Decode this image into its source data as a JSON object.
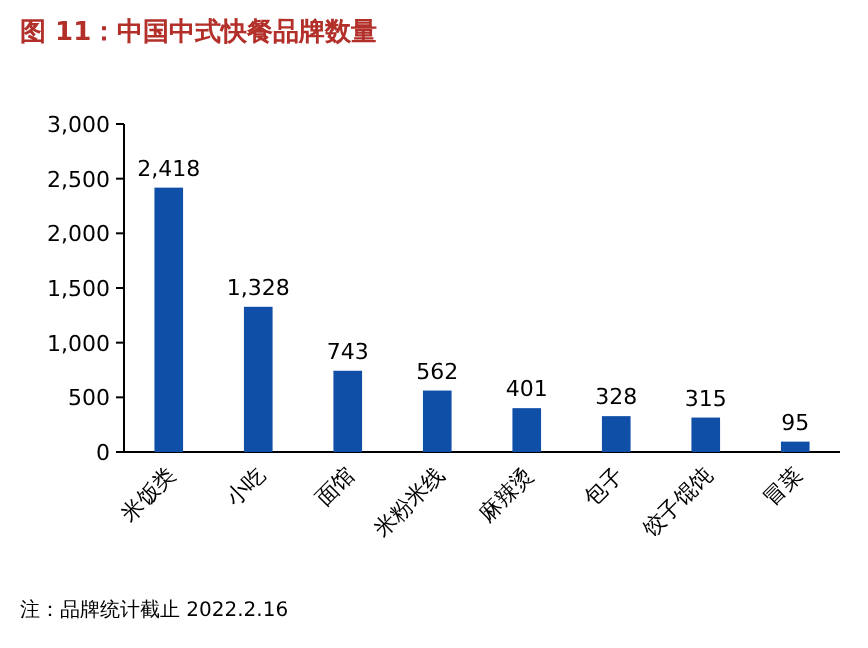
{
  "chart_data": {
    "type": "bar",
    "title": "图 11：中国中式快餐品牌数量",
    "categories": [
      "米饭类",
      "小吃",
      "面馆",
      "米粉米线",
      "麻辣烫",
      "包子",
      "饺子馄饨",
      "冒菜"
    ],
    "values": [
      2418,
      1328,
      743,
      562,
      401,
      328,
      315,
      95
    ],
    "value_labels": [
      "2,418",
      "1,328",
      "743",
      "562",
      "401",
      "328",
      "315",
      "95"
    ],
    "color": "#0f4fa8",
    "ylim": [
      0,
      3000
    ],
    "yticks": [
      0,
      {
        "value": 500,
        "label": "500"
      },
      {
        "value": 1000,
        "label": "1,000"
      },
      {
        "value": 1500,
        "label": "1,500"
      },
      {
        "value": 2000,
        "label": "2,000"
      },
      {
        "value": 2500,
        "label": "2,500"
      },
      {
        "value": 3000,
        "label": "3,000"
      }
    ],
    "grid": false,
    "annotations": [
      "注：品牌统计截止 2022.2.16"
    ]
  }
}
